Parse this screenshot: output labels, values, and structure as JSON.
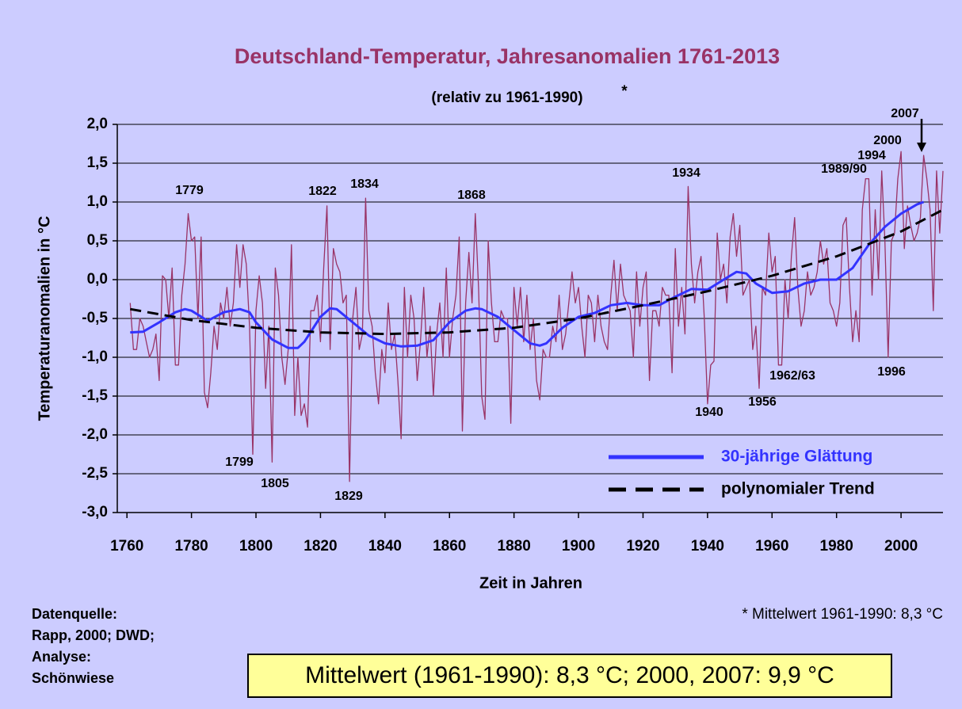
{
  "chart_data": {
    "type": "line",
    "title": "Deutschland-Temperatur, Jahresanomalien 1761-2013",
    "subtitle": "(relativ zu 1961-1990)",
    "subtitle_mark": "*",
    "ylabel": "Temperaturanomalien in °C",
    "xlabel": "Zeit in Jahren",
    "xlim": [
      1757,
      2013
    ],
    "ylim": [
      -3,
      2
    ],
    "xticks": [
      1760,
      1780,
      1800,
      1820,
      1840,
      1860,
      1880,
      1900,
      1920,
      1940,
      1960,
      1980,
      2000
    ],
    "yticks": [
      {
        "value": 2,
        "label": "2,0"
      },
      {
        "value": 1.5,
        "label": "1,5"
      },
      {
        "value": 1,
        "label": "1,0"
      },
      {
        "value": 0.5,
        "label": "0,5"
      },
      {
        "value": 0,
        "label": "0,0"
      },
      {
        "value": -0.5,
        "label": "-0,5"
      },
      {
        "value": -1,
        "label": "-1,0"
      },
      {
        "value": -1.5,
        "label": "-1,5"
      },
      {
        "value": -2,
        "label": "-2,0"
      },
      {
        "value": -2.5,
        "label": "-2,5"
      },
      {
        "value": -3,
        "label": "-3,0"
      }
    ],
    "grid": true,
    "legend": "lower right",
    "x": [
      1761,
      1762,
      1763,
      1764,
      1765,
      1766,
      1767,
      1768,
      1769,
      1770,
      1771,
      1772,
      1773,
      1774,
      1775,
      1776,
      1777,
      1778,
      1779,
      1780,
      1781,
      1782,
      1783,
      1784,
      1785,
      1786,
      1787,
      1788,
      1789,
      1790,
      1791,
      1792,
      1793,
      1794,
      1795,
      1796,
      1797,
      1798,
      1799,
      1800,
      1801,
      1802,
      1803,
      1804,
      1805,
      1806,
      1807,
      1808,
      1809,
      1810,
      1811,
      1812,
      1813,
      1814,
      1815,
      1816,
      1817,
      1818,
      1819,
      1820,
      1821,
      1822,
      1823,
      1824,
      1825,
      1826,
      1827,
      1828,
      1829,
      1830,
      1831,
      1832,
      1833,
      1834,
      1835,
      1836,
      1837,
      1838,
      1839,
      1840,
      1841,
      1842,
      1843,
      1844,
      1845,
      1846,
      1847,
      1848,
      1849,
      1850,
      1851,
      1852,
      1853,
      1854,
      1855,
      1856,
      1857,
      1858,
      1859,
      1860,
      1861,
      1862,
      1863,
      1864,
      1865,
      1866,
      1867,
      1868,
      1869,
      1870,
      1871,
      1872,
      1873,
      1874,
      1875,
      1876,
      1877,
      1878,
      1879,
      1880,
      1881,
      1882,
      1883,
      1884,
      1885,
      1886,
      1887,
      1888,
      1889,
      1890,
      1891,
      1892,
      1893,
      1894,
      1895,
      1896,
      1897,
      1898,
      1899,
      1900,
      1901,
      1902,
      1903,
      1904,
      1905,
      1906,
      1907,
      1908,
      1909,
      1910,
      1911,
      1912,
      1913,
      1914,
      1915,
      1916,
      1917,
      1918,
      1919,
      1920,
      1921,
      1922,
      1923,
      1924,
      1925,
      1926,
      1927,
      1928,
      1929,
      1930,
      1931,
      1932,
      1933,
      1934,
      1935,
      1936,
      1937,
      1938,
      1939,
      1940,
      1941,
      1942,
      1943,
      1944,
      1945,
      1946,
      1947,
      1948,
      1949,
      1950,
      1951,
      1952,
      1953,
      1954,
      1955,
      1956,
      1957,
      1958,
      1959,
      1960,
      1961,
      1962,
      1963,
      1964,
      1965,
      1966,
      1967,
      1968,
      1969,
      1970,
      1971,
      1972,
      1973,
      1974,
      1975,
      1976,
      1977,
      1978,
      1979,
      1980,
      1981,
      1982,
      1983,
      1984,
      1985,
      1986,
      1987,
      1988,
      1989,
      1990,
      1991,
      1992,
      1993,
      1994,
      1995,
      1996,
      1997,
      1998,
      1999,
      2000,
      2001,
      2002,
      2003,
      2004,
      2005,
      2006,
      2007,
      2008,
      2009,
      2010,
      2011,
      2012,
      2013
    ],
    "series": [
      {
        "name": "Jahresanomalie",
        "color": "#993366",
        "legend": false,
        "values": [
          -0.3,
          -0.9,
          -0.9,
          -0.5,
          -0.6,
          -0.8,
          -1.0,
          -0.9,
          -0.7,
          -1.3,
          0.05,
          0.0,
          -0.5,
          0.15,
          -1.1,
          -1.1,
          -0.2,
          0.2,
          0.85,
          0.5,
          0.55,
          -0.5,
          0.55,
          -1.45,
          -1.65,
          -1.2,
          -0.6,
          -0.9,
          -0.3,
          -0.5,
          -0.1,
          -0.6,
          -0.3,
          0.45,
          -0.1,
          0.45,
          0.2,
          -0.6,
          -2.25,
          -0.4,
          0.05,
          -0.3,
          -1.4,
          -0.6,
          -2.35,
          0.15,
          -0.2,
          -1.0,
          -1.35,
          -0.9,
          0.45,
          -1.75,
          -1.0,
          -1.75,
          -1.6,
          -1.9,
          -0.4,
          -0.4,
          -0.2,
          -0.8,
          0.15,
          0.95,
          -0.9,
          0.4,
          0.2,
          0.1,
          -0.3,
          -0.2,
          -2.6,
          -0.5,
          -0.1,
          -0.9,
          -0.7,
          1.05,
          -0.4,
          -0.6,
          -1.2,
          -1.6,
          -0.9,
          -1.2,
          -0.3,
          -0.9,
          -0.7,
          -1.3,
          -2.05,
          -0.1,
          -1.0,
          -0.2,
          -0.5,
          -1.3,
          -0.8,
          -0.1,
          -1.0,
          -0.6,
          -1.5,
          -0.7,
          -0.3,
          -1.0,
          0.15,
          -1.0,
          -0.5,
          -0.2,
          0.55,
          -1.95,
          -0.3,
          0.35,
          -0.3,
          0.85,
          -0.1,
          -1.5,
          -1.8,
          0.5,
          -0.3,
          -0.8,
          -0.8,
          -0.4,
          -0.5,
          -0.5,
          -1.85,
          -0.1,
          -0.6,
          -0.1,
          -0.8,
          -0.2,
          -0.9,
          -0.5,
          -1.3,
          -1.55,
          -0.9,
          -1.0,
          -1.0,
          -0.6,
          -0.8,
          -0.2,
          -0.9,
          -0.7,
          -0.3,
          0.1,
          -0.3,
          -0.1,
          -0.6,
          -1.0,
          -0.2,
          -0.3,
          -0.8,
          -0.2,
          -0.6,
          -0.8,
          -0.9,
          -0.2,
          0.25,
          -0.4,
          0.2,
          -0.2,
          -0.3,
          -0.4,
          -1.0,
          0.1,
          -0.6,
          -0.1,
          0.1,
          -1.3,
          -0.4,
          -0.4,
          -0.6,
          -0.1,
          -0.2,
          -0.2,
          -1.2,
          0.4,
          -0.6,
          -0.1,
          -0.7,
          1.2,
          0.2,
          -0.3,
          0.1,
          0.3,
          -0.5,
          -1.6,
          -1.1,
          -1.05,
          0.6,
          0.0,
          0.2,
          -0.3,
          0.55,
          0.85,
          0.3,
          0.7,
          -0.2,
          -0.1,
          0.0,
          -0.9,
          -0.6,
          -1.4,
          -0.1,
          -0.2,
          0.6,
          0.1,
          0.3,
          -1.1,
          -1.1,
          0.0,
          -0.5,
          0.3,
          0.8,
          -0.1,
          -0.6,
          -0.4,
          0.1,
          -0.2,
          -0.1,
          0.1,
          0.5,
          0.2,
          0.4,
          -0.3,
          -0.4,
          -0.6,
          -0.3,
          0.7,
          0.8,
          -0.1,
          -0.8,
          -0.4,
          -0.8,
          0.9,
          1.3,
          1.3,
          -0.2,
          0.9,
          0.0,
          1.4,
          0.5,
          -1.0,
          0.5,
          0.6,
          1.3,
          1.65,
          0.4,
          0.95,
          0.7,
          0.5,
          0.6,
          0.8,
          1.6,
          1.3,
          0.9,
          -0.4,
          1.4,
          0.6,
          1.4
        ]
      },
      {
        "name": "30-jährige Glättung",
        "color": "#3333ff",
        "x": [
          1761,
          1765,
          1770,
          1775,
          1778,
          1780,
          1785,
          1790,
          1795,
          1798,
          1800,
          1805,
          1810,
          1813,
          1815,
          1820,
          1823,
          1825,
          1830,
          1835,
          1840,
          1845,
          1850,
          1855,
          1860,
          1865,
          1868,
          1870,
          1875,
          1880,
          1885,
          1888,
          1890,
          1895,
          1900,
          1905,
          1910,
          1915,
          1920,
          1925,
          1930,
          1935,
          1940,
          1945,
          1949,
          1952,
          1955,
          1960,
          1965,
          1970,
          1975,
          1980,
          1985,
          1990,
          1995,
          2000,
          2005,
          2007
        ],
        "values": [
          -0.68,
          -0.67,
          -0.55,
          -0.42,
          -0.38,
          -0.4,
          -0.53,
          -0.42,
          -0.38,
          -0.42,
          -0.55,
          -0.77,
          -0.88,
          -0.88,
          -0.8,
          -0.48,
          -0.37,
          -0.38,
          -0.55,
          -0.72,
          -0.82,
          -0.86,
          -0.85,
          -0.78,
          -0.55,
          -0.4,
          -0.37,
          -0.38,
          -0.48,
          -0.65,
          -0.82,
          -0.85,
          -0.82,
          -0.62,
          -0.48,
          -0.43,
          -0.33,
          -0.3,
          -0.33,
          -0.33,
          -0.22,
          -0.12,
          -0.13,
          0.0,
          0.1,
          0.08,
          -0.05,
          -0.17,
          -0.15,
          -0.05,
          0.0,
          0.0,
          0.15,
          0.45,
          0.68,
          0.85,
          0.97,
          1.0
        ]
      },
      {
        "name": "polynomialer Trend",
        "color": "#000000",
        "dashed": true,
        "x": [
          1761,
          1780,
          1800,
          1820,
          1840,
          1860,
          1880,
          1900,
          1920,
          1940,
          1960,
          1980,
          2000,
          2013
        ],
        "values": [
          -0.38,
          -0.52,
          -0.62,
          -0.68,
          -0.7,
          -0.68,
          -0.62,
          -0.5,
          -0.33,
          -0.15,
          0.05,
          0.3,
          0.62,
          0.9
        ]
      }
    ],
    "annotations": [
      "1779",
      "1799",
      "1805",
      "1822",
      "1829",
      "1834",
      "1868",
      "1934",
      "1940",
      "1956",
      "1962/63",
      "1989/90",
      "1994",
      "1996",
      "2000",
      "2007"
    ],
    "footnote": "* Mittelwert 1961-1990: 8,3 °C",
    "source_lines": [
      "Datenquelle:",
      "Rapp, 2000; DWD;",
      "Analyse:",
      "Schönwiese"
    ],
    "highlight": "Mittelwert (1961-1990): 8,3 °C; 2000, 2007: 9,9 °C"
  }
}
